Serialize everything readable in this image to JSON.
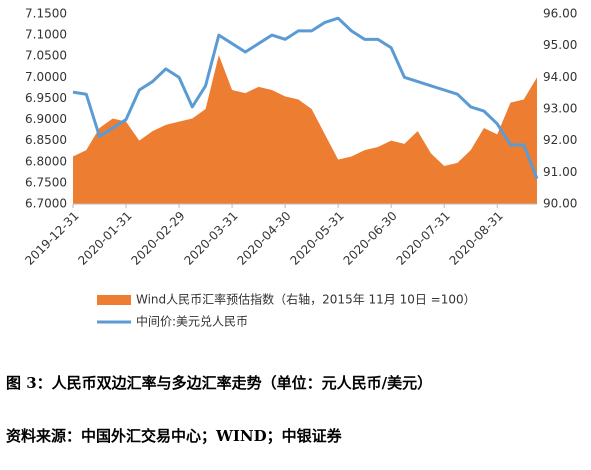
{
  "chart_data": {
    "type": "area_line",
    "categories": [
      "2019-12-31",
      null,
      null,
      null,
      "2020-01-31",
      null,
      null,
      null,
      "2020-02-29",
      null,
      null,
      null,
      "2020-03-31",
      null,
      null,
      null,
      "2020-04-30",
      null,
      null,
      null,
      "2020-05-31",
      null,
      null,
      null,
      "2020-06-30",
      null,
      null,
      null,
      "2020-07-31",
      null,
      null,
      null,
      "2020-08-31",
      null,
      null,
      null
    ],
    "series": [
      {
        "name": "Wind人民币汇率预估指数（右轴，2015年 11月 10日 =100）",
        "type": "area",
        "axis": "y2",
        "color": "#ED7D31",
        "values": [
          91.5,
          91.7,
          92.4,
          92.7,
          92.6,
          92.0,
          92.3,
          92.5,
          92.6,
          92.7,
          93.0,
          94.7,
          93.6,
          93.5,
          93.7,
          93.6,
          93.4,
          93.3,
          93.0,
          92.2,
          91.4,
          91.5,
          91.7,
          91.8,
          92.0,
          91.9,
          92.3,
          91.6,
          91.2,
          91.3,
          91.7,
          92.4,
          92.2,
          93.2,
          93.3,
          94.0
        ]
      },
      {
        "name": "中间价:美元兑人民币",
        "type": "line",
        "axis": "y",
        "color": "#5B9BD5",
        "values": [
          6.965,
          6.96,
          6.86,
          6.88,
          6.9,
          6.97,
          6.99,
          7.02,
          7.0,
          6.93,
          6.98,
          7.1,
          7.08,
          7.06,
          7.08,
          7.1,
          7.09,
          7.11,
          7.11,
          7.13,
          7.14,
          7.11,
          7.09,
          7.09,
          7.07,
          7.0,
          6.99,
          6.98,
          6.97,
          6.96,
          6.93,
          6.92,
          6.89,
          6.84,
          6.84,
          6.76
        ]
      }
    ],
    "ylim": [
      6.7,
      7.15
    ],
    "yticks": [
      {
        "value": 6.7,
        "label": "6.7000"
      },
      {
        "value": 6.75,
        "label": "6.7500"
      },
      {
        "value": 6.8,
        "label": "6.8000"
      },
      {
        "value": 6.85,
        "label": "6.8500"
      },
      {
        "value": 6.9,
        "label": "6.9000"
      },
      {
        "value": 6.95,
        "label": "6.9500"
      },
      {
        "value": 7.0,
        "label": "7.0000"
      },
      {
        "value": 7.05,
        "label": "7.0500"
      },
      {
        "value": 7.1,
        "label": "7.1000"
      },
      {
        "value": 7.15,
        "label": "7.1500"
      }
    ],
    "y2lim": [
      90,
      96
    ],
    "y2ticks": [
      {
        "value": 90,
        "label": "90.00"
      },
      {
        "value": 91,
        "label": "91.00"
      },
      {
        "value": 92,
        "label": "92.00"
      },
      {
        "value": 93,
        "label": "93.00"
      },
      {
        "value": 94,
        "label": "94.00"
      },
      {
        "value": 95,
        "label": "95.00"
      },
      {
        "value": 96,
        "label": "96.00"
      }
    ],
    "grid": false,
    "legend": "bottom"
  },
  "caption": "图 3：人民币双边汇率与多边汇率走势（单位：元人民币/美元）",
  "source": "资料来源：中国外汇交易中心；WIND；中银证券"
}
